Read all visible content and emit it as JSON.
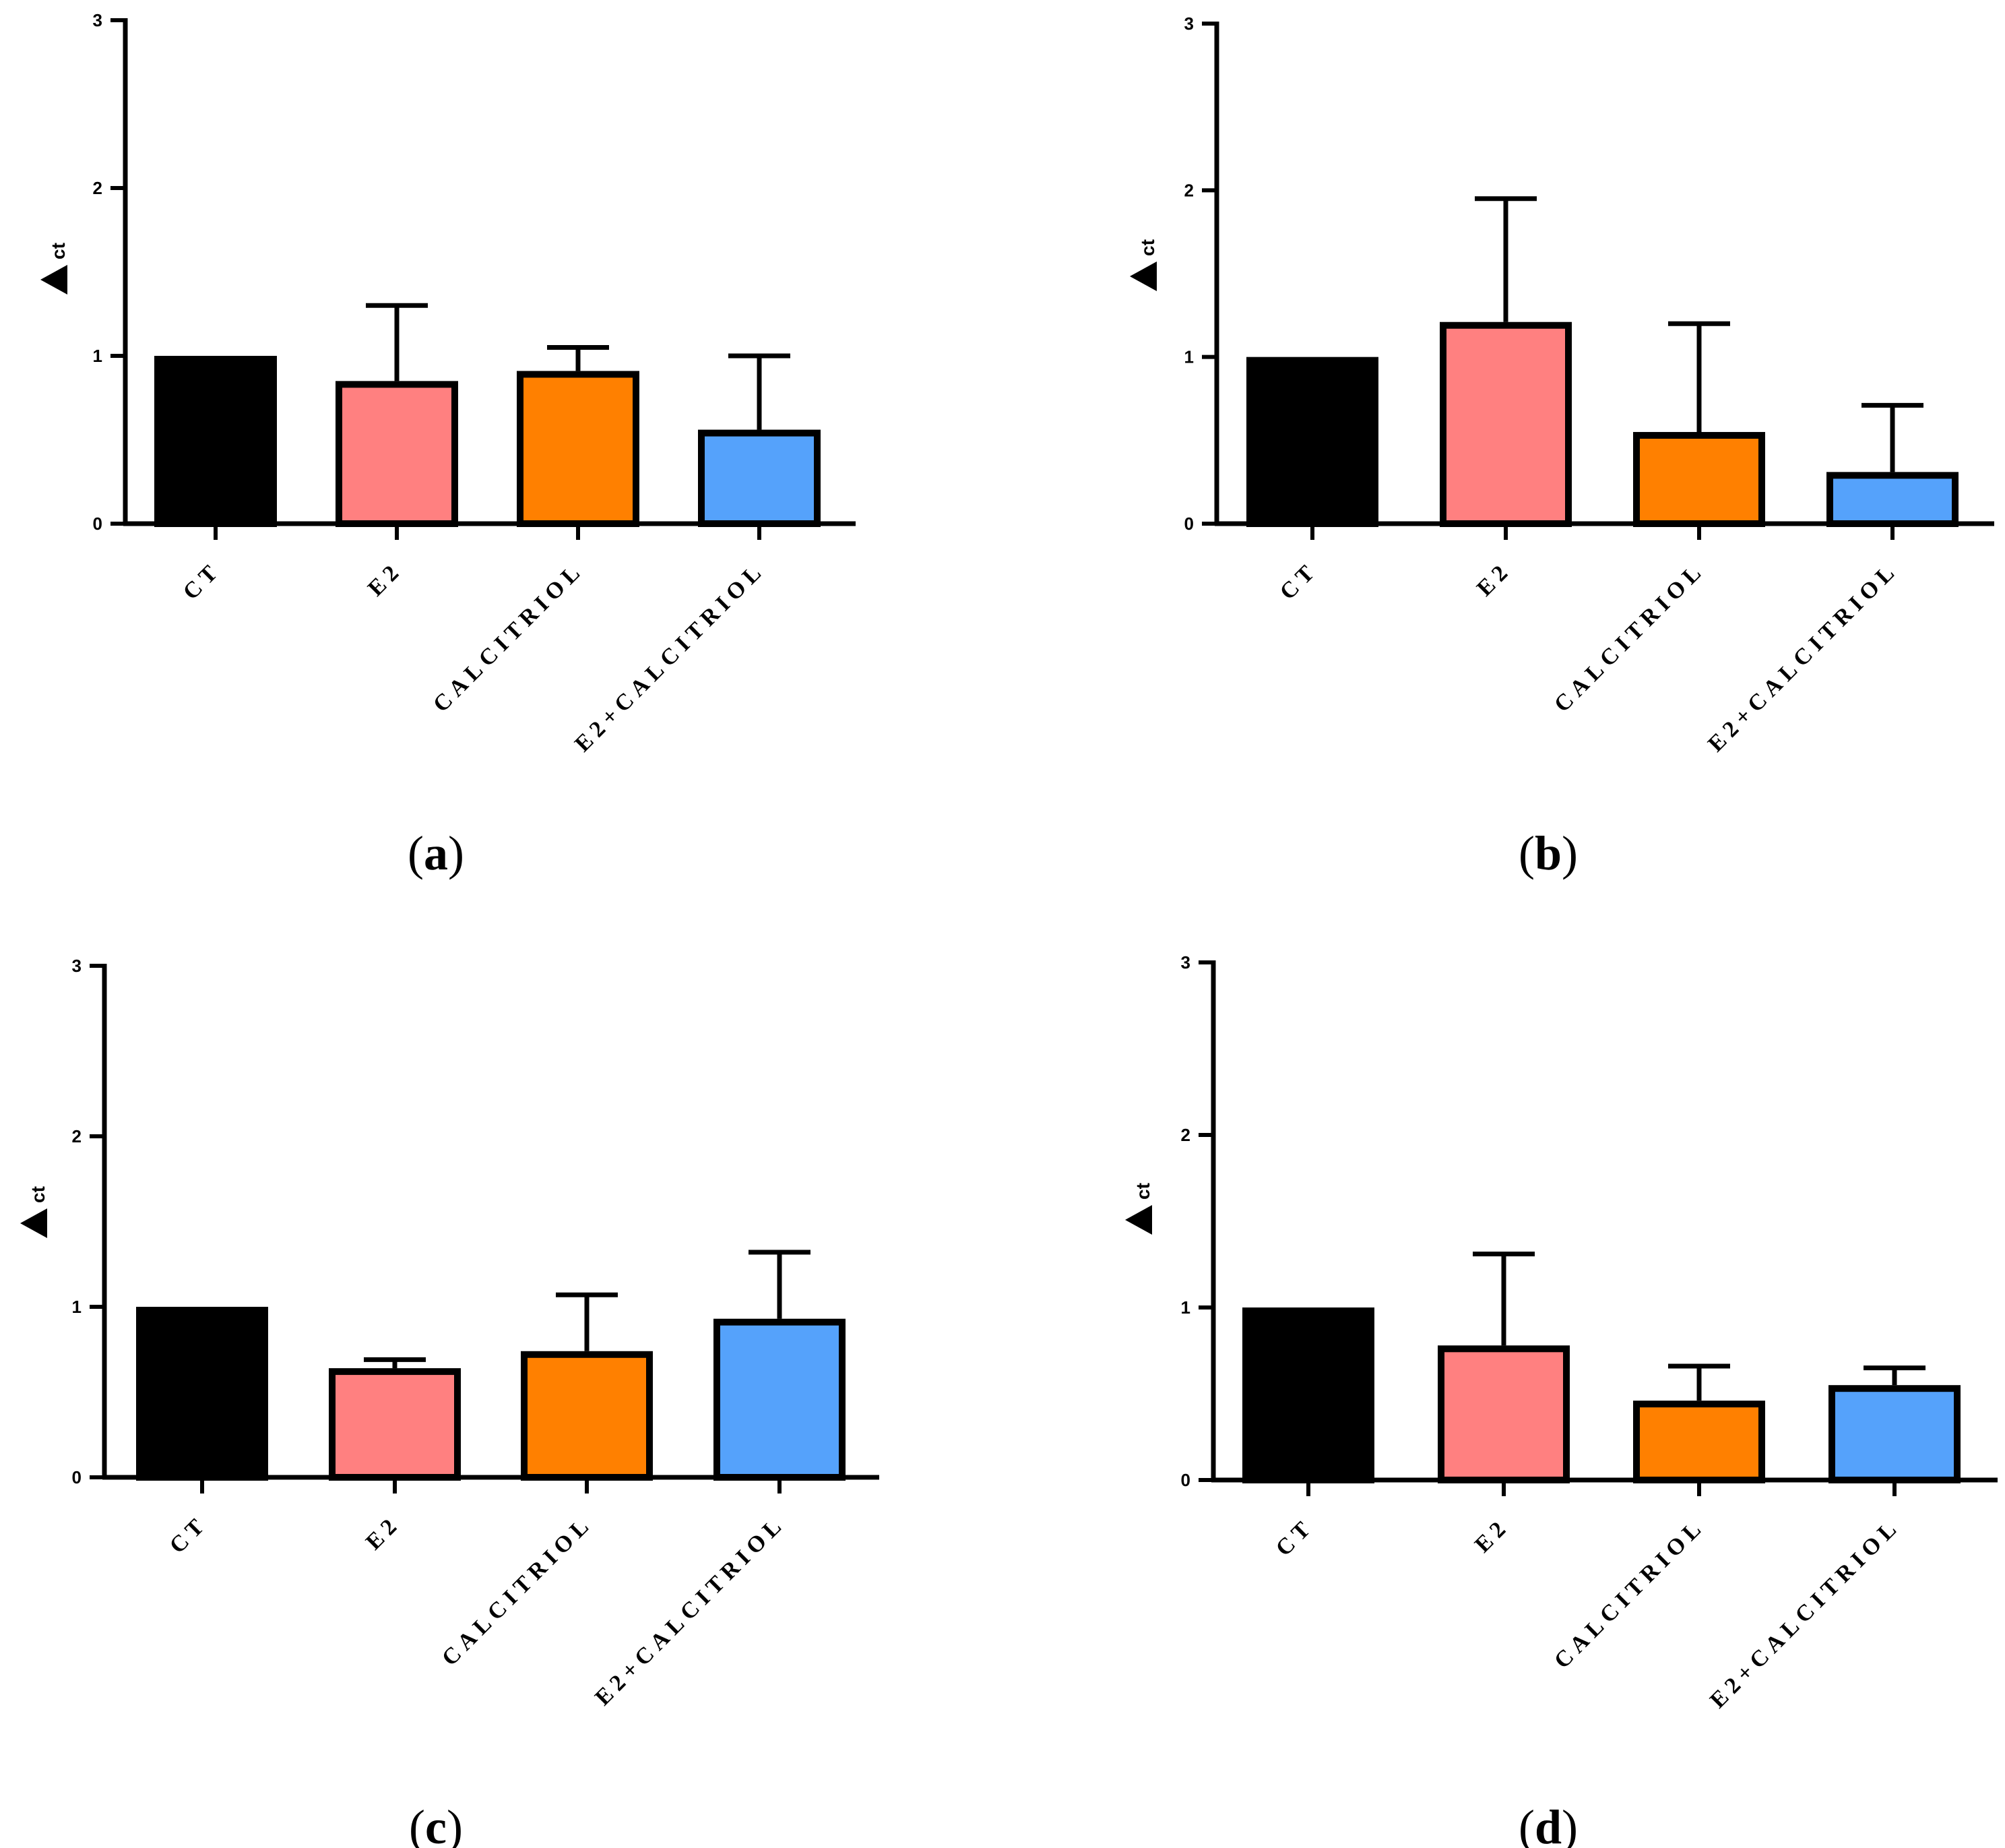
{
  "chart_data": [
    {
      "panel": "a",
      "type": "bar",
      "ylabel": "ct",
      "ylim": [
        0,
        3
      ],
      "yticks": [
        "0",
        "1",
        "2",
        "3"
      ],
      "categories": [
        "CT",
        "E2",
        "CALCITRIOL",
        "E2+CALCITRIOL"
      ],
      "values": [
        1.0,
        0.85,
        0.91,
        0.56
      ],
      "errors": [
        0,
        0.45,
        0.14,
        0.44
      ],
      "colors": [
        "#000000",
        "#ff8080",
        "#ff8000",
        "#55a2fb"
      ]
    },
    {
      "panel": "b",
      "type": "bar",
      "ylabel": "ct",
      "ylim": [
        0,
        3
      ],
      "yticks": [
        "0",
        "1",
        "2",
        "3"
      ],
      "categories": [
        "CT",
        "E2",
        "CALCITRIOL",
        "E2+CALCITRIOL"
      ],
      "values": [
        1.0,
        1.21,
        0.55,
        0.31
      ],
      "errors": [
        0,
        0.74,
        0.65,
        0.4
      ],
      "colors": [
        "#000000",
        "#ff8080",
        "#ff8000",
        "#55a2fb"
      ]
    },
    {
      "panel": "c",
      "type": "bar",
      "ylabel": "ct",
      "ylim": [
        0,
        3
      ],
      "yticks": [
        "0",
        "1",
        "2",
        "3"
      ],
      "categories": [
        "CT",
        "E2",
        "CALCITRIOL",
        "E2+CALCITRIOL"
      ],
      "values": [
        1.0,
        0.64,
        0.74,
        0.93
      ],
      "errors": [
        0,
        0.05,
        0.33,
        0.39
      ],
      "colors": [
        "#000000",
        "#ff8080",
        "#ff8000",
        "#55a2fb"
      ]
    },
    {
      "panel": "d",
      "type": "bar",
      "ylabel": "ct",
      "ylim": [
        0,
        3
      ],
      "yticks": [
        "0",
        "1",
        "2",
        "3"
      ],
      "categories": [
        "CT",
        "E2",
        "CALCITRIOL",
        "E2+CALCITRIOL"
      ],
      "values": [
        1.0,
        0.78,
        0.46,
        0.55
      ],
      "errors": [
        0,
        0.53,
        0.2,
        0.1
      ],
      "colors": [
        "#000000",
        "#ff8080",
        "#ff8000",
        "#55a2fb"
      ]
    }
  ],
  "panel_labels": [
    "a",
    "b",
    "c",
    "d"
  ]
}
